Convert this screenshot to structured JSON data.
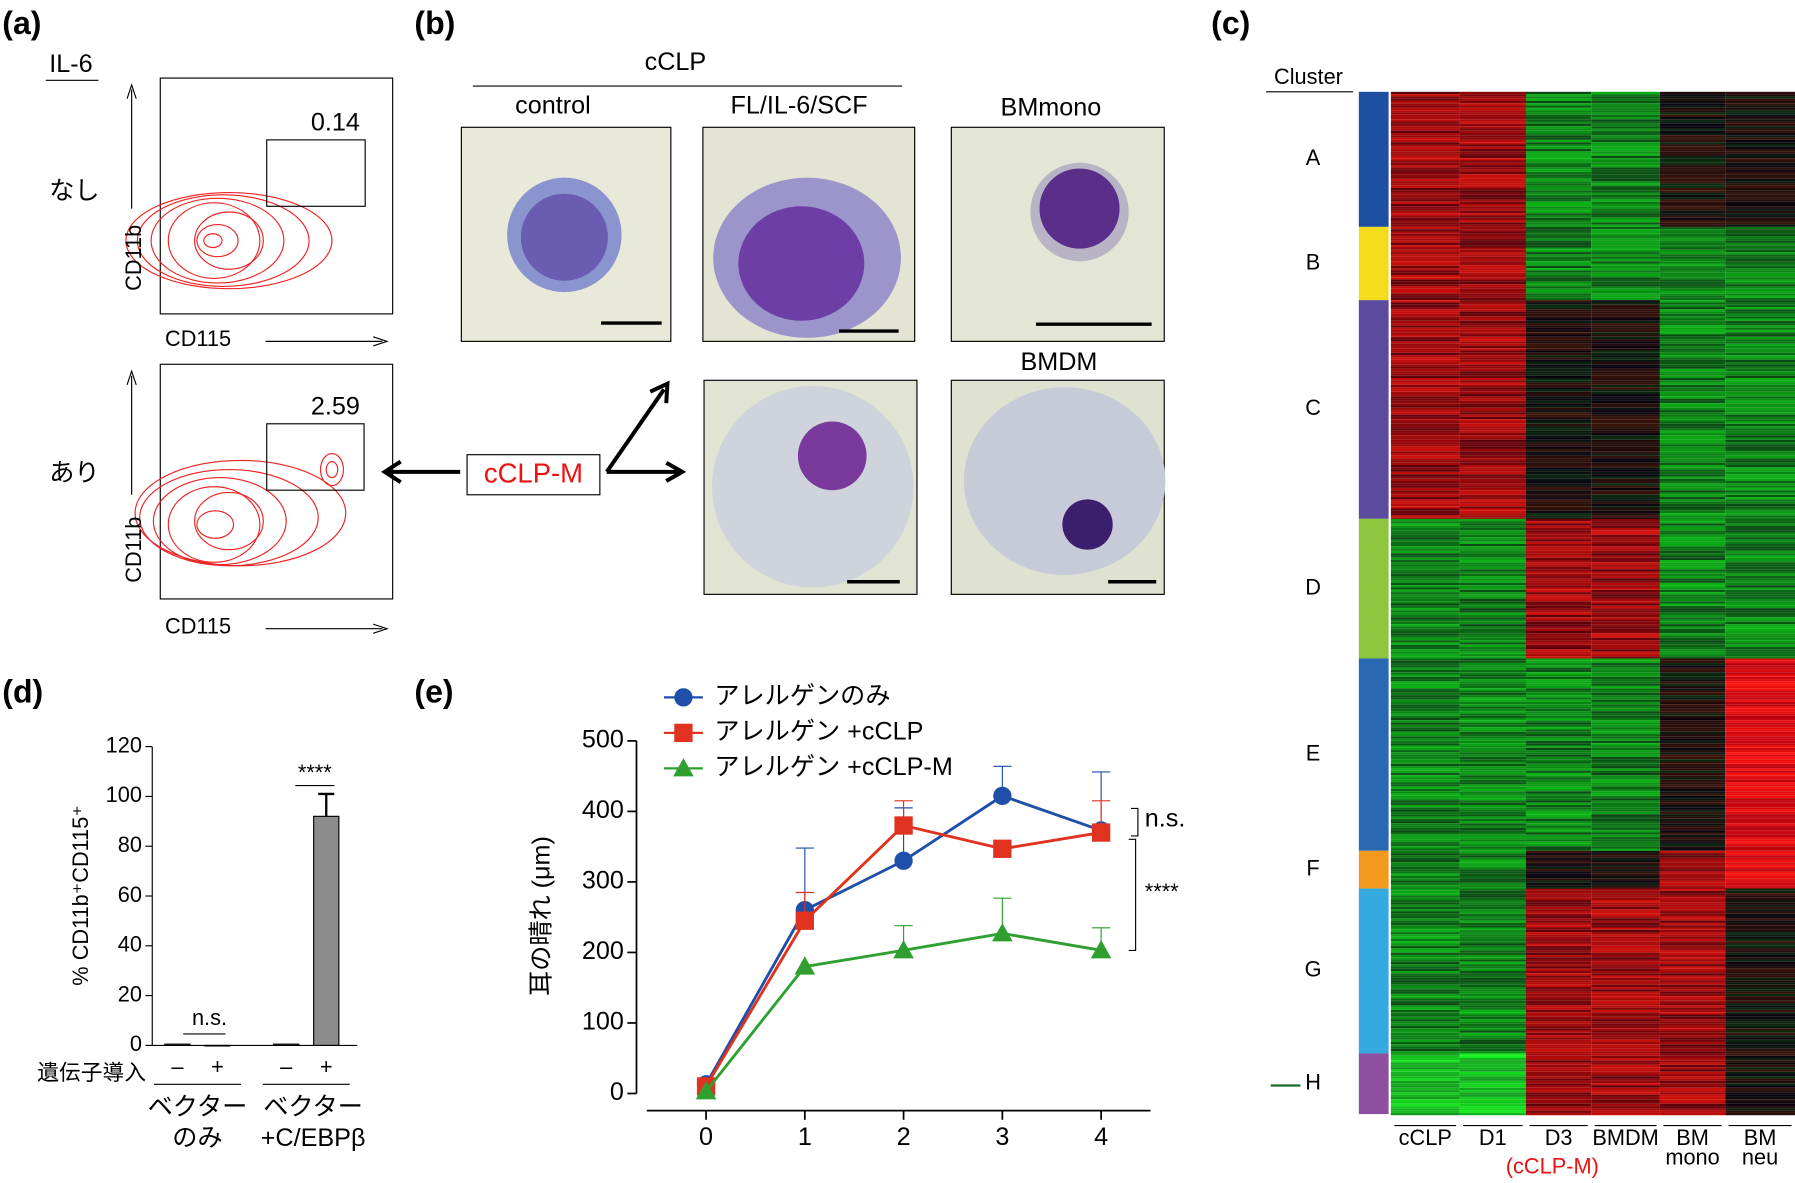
{
  "panels": {
    "a": {
      "label": "(a)",
      "condition": "IL-6",
      "rows": [
        {
          "label": "なし",
          "gate": 0.14
        },
        {
          "label": "あり",
          "gate": 2.59
        }
      ],
      "y_axis": "CD11b",
      "x_axis": "CD115"
    },
    "b": {
      "label": "(b)",
      "group": "cCLP",
      "images": [
        "control",
        "FL/IL-6/SCF",
        "BMmono",
        "BMDM"
      ],
      "center": "cCLP-M"
    },
    "c": {
      "label": "(c)",
      "heading": "Cluster",
      "clusters": [
        "A",
        "B",
        "C",
        "D",
        "E",
        "F",
        "G",
        "H"
      ],
      "columns": [
        [
          "cCLP"
        ],
        [
          "D1"
        ],
        [
          "D3"
        ],
        [
          "BMDM"
        ],
        [
          "BM",
          "mono"
        ],
        [
          "BM",
          "neu"
        ]
      ],
      "note": "(cCLP-M)"
    },
    "d": {
      "label": "(d)"
    },
    "e": {
      "label": "(e)"
    }
  },
  "chart_data": [
    {
      "type": "bar",
      "ylabel": "% CD11b⁺CD115⁺",
      "row_label": "遺伝子導入",
      "categories": [
        "–",
        "+",
        "–",
        "+"
      ],
      "groups": [
        [
          "ベクター",
          "のみ"
        ],
        [
          "ベクター",
          "+C/EBPβ"
        ]
      ],
      "values": [
        0.5,
        0,
        0.5,
        92
      ],
      "errors": [
        null,
        null,
        null,
        9
      ],
      "colors": [
        "#ffffff",
        "#ffffff",
        "#ffffff",
        "#8c8c8c"
      ],
      "ylim": [
        0,
        120
      ],
      "yticks": [
        0,
        20,
        40,
        60,
        80,
        100,
        120
      ],
      "annotations": [
        "n.s.",
        "****"
      ]
    },
    {
      "type": "line",
      "ylabel": "耳の晴れ (μm)",
      "x": [
        0,
        1,
        2,
        3,
        4
      ],
      "xlim": [
        -0.6,
        4.5
      ],
      "xticks": [
        0,
        1,
        2,
        3,
        4
      ],
      "ylim": [
        0,
        500
      ],
      "yticks": [
        0,
        100,
        200,
        300,
        400,
        500
      ],
      "legend": "upper left",
      "annotations": [
        "n.s.",
        "****"
      ],
      "series": [
        {
          "name": "アレルゲンのみ",
          "color": "#1f4fa8",
          "marker": "circle",
          "values": [
            13,
            260,
            330,
            422,
            373
          ],
          "errors": [
            null,
            88,
            75,
            42,
            83
          ]
        },
        {
          "name": "アレルゲン +cCLP",
          "color": "#e0321e",
          "marker": "square",
          "values": [
            10,
            245,
            380,
            347,
            370
          ],
          "errors": [
            null,
            40,
            35,
            10,
            45
          ]
        },
        {
          "name": "アレルゲン +cCLP-M",
          "color": "#2fa02f",
          "marker": "triangle",
          "values": [
            3,
            180,
            203,
            227,
            203
          ],
          "errors": [
            null,
            null,
            35,
            50,
            32
          ]
        }
      ]
    }
  ]
}
